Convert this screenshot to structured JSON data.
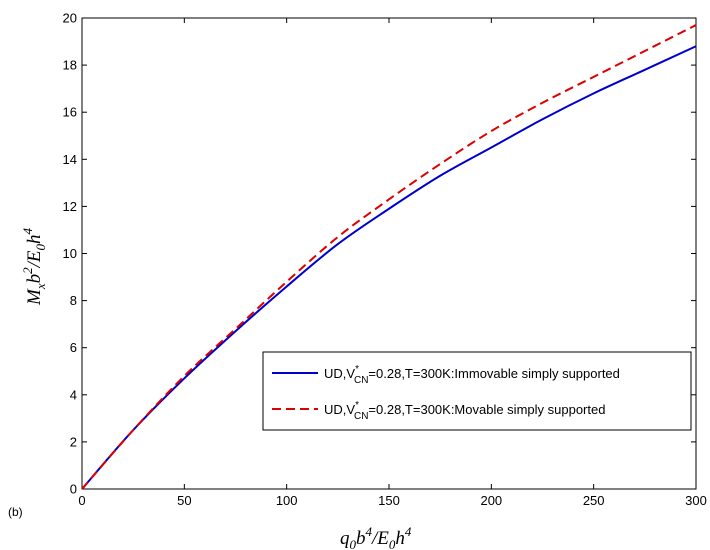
{
  "chart_data": {
    "type": "line",
    "panel_label": "(b)",
    "xlim": [
      0,
      300
    ],
    "ylim": [
      0,
      20
    ],
    "xticks": [
      0,
      50,
      100,
      150,
      200,
      250,
      300
    ],
    "yticks": [
      0,
      2,
      4,
      6,
      8,
      10,
      12,
      14,
      16,
      18,
      20
    ],
    "xlabel": "q0b4/E0h4",
    "ylabel": "Mxb2/E0h4",
    "grid": false,
    "legend_position": "bottom-right",
    "series": [
      {
        "name": "UD,V*CN=0.28,T=300K:Immovable simply supported",
        "color": "#0000cc",
        "style": "solid",
        "x": [
          0,
          25,
          50,
          75,
          100,
          125,
          150,
          175,
          200,
          225,
          250,
          275,
          300
        ],
        "y": [
          0,
          2.5,
          4.7,
          6.7,
          8.6,
          10.4,
          11.9,
          13.3,
          14.5,
          15.7,
          16.8,
          17.8,
          18.8
        ]
      },
      {
        "name": "UD,V*CN=0.28,T=300K:Movable simply supported",
        "color": "#dd0000",
        "style": "dashed",
        "x": [
          0,
          25,
          50,
          75,
          100,
          125,
          150,
          175,
          200,
          225,
          250,
          275,
          300
        ],
        "y": [
          0,
          2.5,
          4.8,
          6.8,
          8.8,
          10.7,
          12.3,
          13.8,
          15.2,
          16.4,
          17.5,
          18.6,
          19.7
        ]
      }
    ]
  }
}
